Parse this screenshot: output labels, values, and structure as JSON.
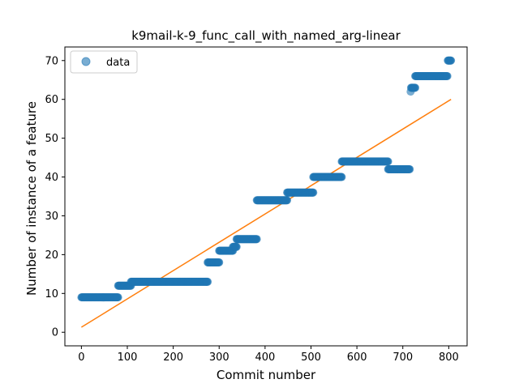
{
  "chart_data": {
    "type": "scatter",
    "title": "k9mail-k-9_func_call_with_named_arg-linear",
    "xlabel": "Commit number",
    "ylabel": "Number of instance of a feature",
    "xlim": [
      -36,
      840
    ],
    "ylim": [
      -3.5,
      73.5
    ],
    "xticks": [
      0,
      100,
      200,
      300,
      400,
      500,
      600,
      700,
      800
    ],
    "yticks": [
      0,
      10,
      20,
      30,
      40,
      50,
      60,
      70
    ],
    "legend_position": "upper-left",
    "grid": false,
    "colors": {
      "data": "#1f77b4",
      "fit": "#ff7f0e"
    },
    "series": [
      {
        "name": "data",
        "kind": "scatter",
        "steps": [
          {
            "x_start": 0,
            "x_end": 80,
            "y": 9
          },
          {
            "x_start": 80,
            "x_end": 108,
            "y": 12
          },
          {
            "x_start": 108,
            "x_end": 275,
            "y": 13
          },
          {
            "x_start": 275,
            "x_end": 300,
            "y": 18
          },
          {
            "x_start": 300,
            "x_end": 330,
            "y": 21
          },
          {
            "x_start": 330,
            "x_end": 338,
            "y": 22
          },
          {
            "x_start": 338,
            "x_end": 382,
            "y": 24
          },
          {
            "x_start": 382,
            "x_end": 448,
            "y": 34
          },
          {
            "x_start": 448,
            "x_end": 505,
            "y": 36
          },
          {
            "x_start": 505,
            "x_end": 567,
            "y": 40
          },
          {
            "x_start": 567,
            "x_end": 668,
            "y": 44
          },
          {
            "x_start": 668,
            "x_end": 715,
            "y": 42
          },
          {
            "x_start": 717,
            "x_end": 717,
            "y": 62
          },
          {
            "x_start": 718,
            "x_end": 727,
            "y": 63
          },
          {
            "x_start": 727,
            "x_end": 797,
            "y": 66
          },
          {
            "x_start": 798,
            "x_end": 805,
            "y": 70
          }
        ]
      },
      {
        "kind": "line",
        "x": [
          0,
          805
        ],
        "y": [
          1.3,
          60
        ]
      }
    ]
  }
}
